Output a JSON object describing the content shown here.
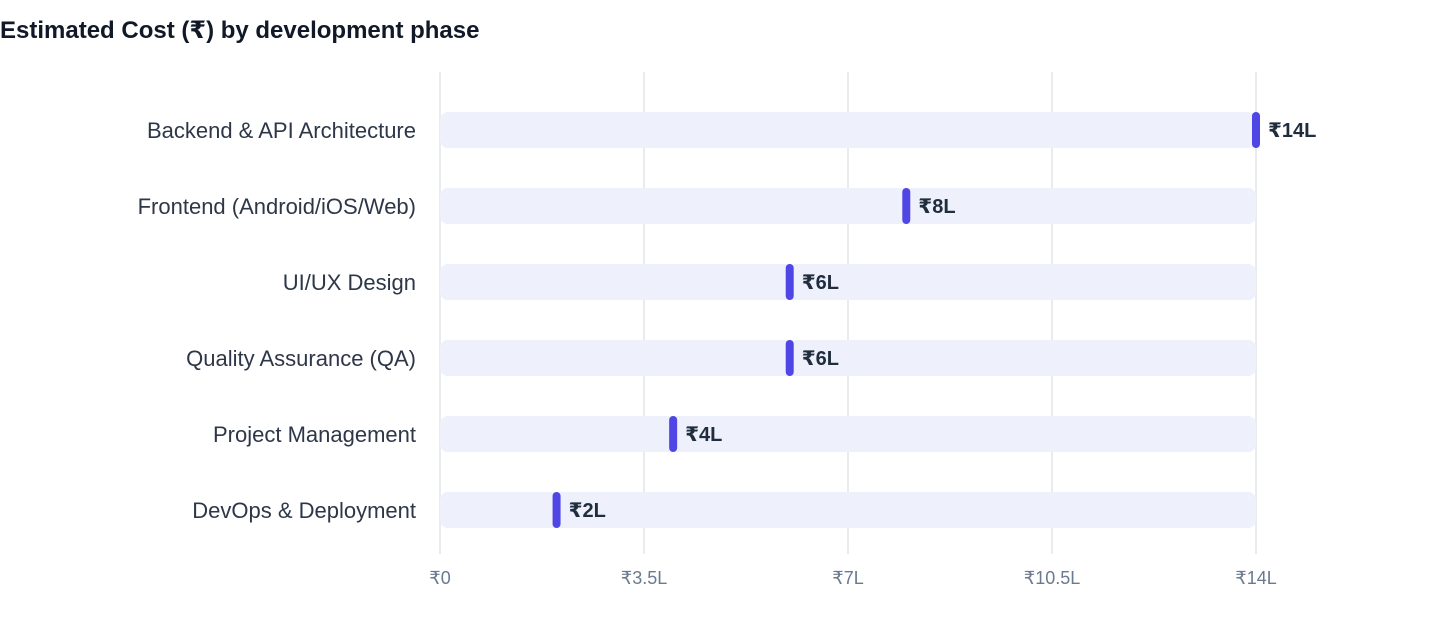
{
  "chart_data": {
    "type": "bar",
    "title": "Estimated Cost (₹) by development phase",
    "categories": [
      "Backend & API Architecture",
      "Frontend (Android/iOS/Web)",
      "UI/UX Design",
      "Quality Assurance (QA)",
      "Project Management",
      "DevOps & Deployment"
    ],
    "values": [
      14,
      8,
      6,
      6,
      4,
      2
    ],
    "value_unit": "L (lakh ₹)",
    "value_labels": [
      "₹14L",
      "₹8L",
      "₹6L",
      "₹6L",
      "₹4L",
      "₹2L"
    ],
    "xlim": [
      0,
      14
    ],
    "x_ticks": [
      0,
      3.5,
      7,
      10.5,
      14
    ],
    "x_tick_labels": [
      "₹0",
      "₹3.5L",
      "₹7L",
      "₹10.5L",
      "₹14L"
    ],
    "orientation": "horizontal",
    "grid": true,
    "colors": {
      "track": "#eef1fc",
      "marker": "#4f46e5",
      "grid": "#e2e5ea"
    }
  }
}
